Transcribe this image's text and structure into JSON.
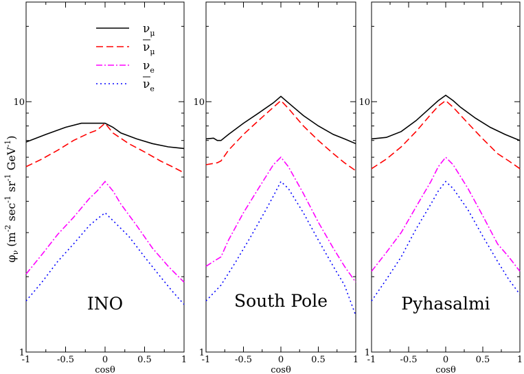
{
  "chart_data": [
    {
      "type": "line",
      "panel": "INO",
      "xlabel": "cosθ",
      "ylabel": "φ_ν (m^-2 sec^-1 sr^-1 GeV^-1)",
      "xlim": [
        -1,
        1
      ],
      "ylim": [
        1,
        25
      ],
      "yscale": "log",
      "xticks": [
        -1,
        -0.5,
        0,
        0.5,
        1
      ],
      "xticklabels": [
        "-1",
        "-0.5",
        "0",
        "0.5",
        "1"
      ],
      "yticks": [
        1,
        10
      ],
      "yticklabels": [
        "1",
        "10"
      ],
      "series": [
        {
          "name": "nu_mu",
          "x": [
            -1,
            -0.75,
            -0.5,
            -0.3,
            -0.2,
            -0.1,
            0,
            0.1,
            0.2,
            0.4,
            0.6,
            0.8,
            1
          ],
          "y": [
            6.9,
            7.4,
            7.9,
            8.2,
            8.2,
            8.2,
            8.2,
            7.9,
            7.5,
            7.1,
            6.8,
            6.6,
            6.5
          ]
        },
        {
          "name": "nu_mu_bar",
          "x": [
            -1,
            -0.8,
            -0.6,
            -0.4,
            -0.2,
            -0.1,
            0,
            0.1,
            0.3,
            0.5,
            0.7,
            0.85,
            1
          ],
          "y": [
            5.5,
            5.9,
            6.4,
            7.0,
            7.5,
            7.7,
            8.2,
            7.5,
            6.8,
            6.3,
            5.8,
            5.5,
            5.2
          ]
        },
        {
          "name": "nu_e",
          "x": [
            -1,
            -0.8,
            -0.6,
            -0.4,
            -0.2,
            -0.1,
            0,
            0.1,
            0.2,
            0.4,
            0.6,
            0.8,
            1
          ],
          "y": [
            2.05,
            2.45,
            2.95,
            3.45,
            4.1,
            4.4,
            4.8,
            4.4,
            3.9,
            3.2,
            2.6,
            2.2,
            1.9
          ]
        },
        {
          "name": "nu_e_bar",
          "x": [
            -1,
            -0.8,
            -0.6,
            -0.4,
            -0.2,
            -0.1,
            0,
            0.1,
            0.3,
            0.5,
            0.7,
            0.85,
            1
          ],
          "y": [
            1.6,
            1.9,
            2.3,
            2.7,
            3.2,
            3.4,
            3.6,
            3.35,
            2.9,
            2.4,
            2.0,
            1.75,
            1.55
          ]
        }
      ]
    },
    {
      "type": "line",
      "panel": "South Pole",
      "xlabel": "cosθ",
      "xlim": [
        -1,
        1
      ],
      "ylim": [
        1,
        25
      ],
      "yscale": "log",
      "xticks": [
        -1,
        -0.5,
        0,
        0.5,
        1
      ],
      "xticklabels": [
        "-1",
        "-0.5",
        "0",
        "0.5",
        "1"
      ],
      "yticks": [
        1,
        10
      ],
      "yticklabels": [
        "1",
        "10"
      ],
      "series": [
        {
          "name": "nu_mu",
          "x": [
            -1,
            -0.9,
            -0.85,
            -0.8,
            -0.7,
            -0.5,
            -0.3,
            -0.1,
            0,
            0.1,
            0.3,
            0.5,
            0.7,
            0.85,
            1
          ],
          "y": [
            7.1,
            7.15,
            7.0,
            7.0,
            7.4,
            8.2,
            9.0,
            9.9,
            10.5,
            9.9,
            8.8,
            8.0,
            7.4,
            7.1,
            6.8
          ]
        },
        {
          "name": "nu_mu_bar",
          "x": [
            -1,
            -0.85,
            -0.8,
            -0.7,
            -0.5,
            -0.3,
            -0.1,
            0,
            0.1,
            0.3,
            0.5,
            0.7,
            0.85,
            1
          ],
          "y": [
            5.6,
            5.7,
            5.8,
            6.4,
            7.4,
            8.4,
            9.5,
            10.1,
            9.4,
            8.0,
            7.0,
            6.2,
            5.7,
            5.3
          ]
        },
        {
          "name": "nu_e",
          "x": [
            -1,
            -0.9,
            -0.8,
            -0.7,
            -0.5,
            -0.3,
            -0.1,
            0,
            0.1,
            0.3,
            0.5,
            0.7,
            0.85,
            1
          ],
          "y": [
            2.2,
            2.3,
            2.4,
            2.8,
            3.6,
            4.5,
            5.6,
            6.0,
            5.5,
            4.3,
            3.3,
            2.6,
            2.2,
            1.9
          ]
        },
        {
          "name": "nu_e_bar",
          "x": [
            -1,
            -0.8,
            -0.6,
            -0.4,
            -0.2,
            -0.1,
            0,
            0.1,
            0.3,
            0.5,
            0.7,
            0.85,
            1
          ],
          "y": [
            1.6,
            1.85,
            2.3,
            2.9,
            3.7,
            4.2,
            4.8,
            4.5,
            3.6,
            2.8,
            2.2,
            1.85,
            1.4
          ]
        }
      ]
    },
    {
      "type": "line",
      "panel": "Pyhasalmi",
      "xlabel": "cosθ",
      "xlim": [
        -1,
        1
      ],
      "ylim": [
        1,
        25
      ],
      "yscale": "log",
      "xticks": [
        -1,
        -0.5,
        0,
        0.5,
        1
      ],
      "xticklabels": [
        "-1",
        "-0.5",
        "0",
        "0.5",
        "1"
      ],
      "yticks": [
        1,
        10
      ],
      "yticklabels": [
        "1",
        "10"
      ],
      "series": [
        {
          "name": "nu_mu",
          "x": [
            -1,
            -0.8,
            -0.6,
            -0.4,
            -0.2,
            -0.1,
            0,
            0.1,
            0.2,
            0.4,
            0.6,
            0.8,
            1
          ],
          "y": [
            7.1,
            7.2,
            7.6,
            8.4,
            9.5,
            10.1,
            10.6,
            10.1,
            9.5,
            8.6,
            7.9,
            7.4,
            7.0
          ]
        },
        {
          "name": "nu_mu_bar",
          "x": [
            -1,
            -0.8,
            -0.6,
            -0.4,
            -0.2,
            -0.1,
            0,
            0.1,
            0.3,
            0.5,
            0.7,
            0.85,
            1
          ],
          "y": [
            5.4,
            5.9,
            6.6,
            7.6,
            8.9,
            9.6,
            10.1,
            9.5,
            8.2,
            7.1,
            6.2,
            5.8,
            5.4
          ]
        },
        {
          "name": "nu_e",
          "x": [
            -1,
            -0.8,
            -0.6,
            -0.4,
            -0.2,
            -0.1,
            0,
            0.1,
            0.3,
            0.5,
            0.7,
            0.85,
            1
          ],
          "y": [
            2.1,
            2.5,
            3.0,
            3.8,
            4.8,
            5.5,
            6.0,
            5.6,
            4.5,
            3.5,
            2.7,
            2.4,
            2.1
          ]
        },
        {
          "name": "nu_e_bar",
          "x": [
            -1,
            -0.8,
            -0.6,
            -0.4,
            -0.2,
            -0.1,
            0,
            0.1,
            0.3,
            0.5,
            0.7,
            0.85,
            1
          ],
          "y": [
            1.6,
            1.95,
            2.4,
            3.1,
            3.9,
            4.4,
            4.8,
            4.5,
            3.7,
            2.9,
            2.3,
            1.95,
            1.7
          ]
        }
      ]
    }
  ],
  "legend": {
    "entries": [
      {
        "series": "nu_mu",
        "base": "ν",
        "sub": "μ",
        "bar": false,
        "color": "#000000",
        "dash": ""
      },
      {
        "series": "nu_mu_bar",
        "base": "ν",
        "sub": "μ",
        "bar": true,
        "color": "#ff0000",
        "dash": "10,5"
      },
      {
        "series": "nu_e",
        "base": "ν",
        "sub": "e",
        "bar": false,
        "color": "#ff00ff",
        "dash": "9,3,2,3"
      },
      {
        "series": "nu_e_bar",
        "base": "ν",
        "sub": "e",
        "bar": true,
        "color": "#0000ff",
        "dash": "2,4"
      }
    ]
  },
  "ylabel_parts": {
    "phi": "φ",
    "phi_sub": "ν",
    "open": "(m",
    "exp_m": "-2",
    "sec": "sec",
    "exp_sec": "-1",
    "sr": "sr",
    "exp_sr": "-1",
    "gev": "GeV",
    "exp_gev": "-1",
    "close": ")"
  }
}
